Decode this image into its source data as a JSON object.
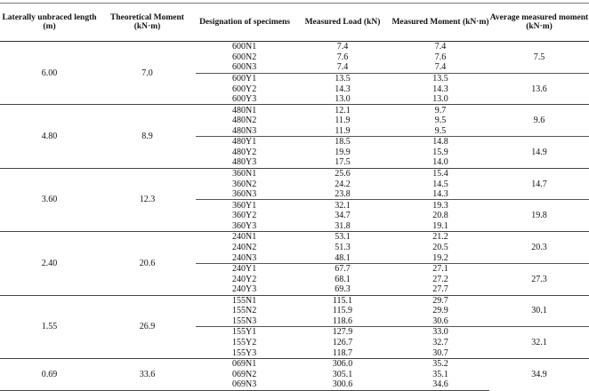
{
  "headers": [
    "Laterally unbraced length (m)",
    "Theoretical Moment (kN·m)",
    "Designation of specimens",
    "Measured Load (kN)",
    "Measured Moment (kN·m)",
    "Average measured moment (kN·m)"
  ],
  "groups": [
    {
      "length": "6.00",
      "theoretical": "7.0",
      "subgroups": [
        {
          "average": "7.5",
          "rows": [
            [
              "600N1",
              "7.4",
              "7.4"
            ],
            [
              "600N2",
              "7.6",
              "7.6"
            ],
            [
              "600N3",
              "7.4",
              "7.4"
            ]
          ]
        },
        {
          "average": "13.6",
          "rows": [
            [
              "600Y1",
              "13.5",
              "13.5"
            ],
            [
              "600Y2",
              "14.3",
              "14.3"
            ],
            [
              "600Y3",
              "13.0",
              "13.0"
            ]
          ]
        }
      ]
    },
    {
      "length": "4.80",
      "theoretical": "8.9",
      "subgroups": [
        {
          "average": "9.6",
          "rows": [
            [
              "480N1",
              "12.1",
              "9.7"
            ],
            [
              "480N2",
              "11.9",
              "9.5"
            ],
            [
              "480N3",
              "11.9",
              "9.5"
            ]
          ]
        },
        {
          "average": "14.9",
          "rows": [
            [
              "480Y1",
              "18.5",
              "14.8"
            ],
            [
              "480Y2",
              "19.9",
              "15.9"
            ],
            [
              "480Y3",
              "17.5",
              "14.0"
            ]
          ]
        }
      ]
    },
    {
      "length": "3.60",
      "theoretical": "12.3",
      "subgroups": [
        {
          "average": "14.7",
          "rows": [
            [
              "360N1",
              "25.6",
              "15.4"
            ],
            [
              "360N2",
              "24.2",
              "14.5"
            ],
            [
              "360N3",
              "23.8",
              "14.3"
            ]
          ]
        },
        {
          "average": "19.8",
          "rows": [
            [
              "360Y1",
              "32.1",
              "19.3"
            ],
            [
              "360Y2",
              "34.7",
              "20.8"
            ],
            [
              "360Y3",
              "31.8",
              "19.1"
            ]
          ]
        }
      ]
    },
    {
      "length": "2.40",
      "theoretical": "20.6",
      "subgroups": [
        {
          "average": "20.3",
          "rows": [
            [
              "240N1",
              "53.1",
              "21.2"
            ],
            [
              "240N2",
              "51.3",
              "20.5"
            ],
            [
              "240N3",
              "48.1",
              "19.2"
            ]
          ]
        },
        {
          "average": "27.3",
          "rows": [
            [
              "240Y1",
              "67.7",
              "27.1"
            ],
            [
              "240Y2",
              "68.1",
              "27.2"
            ],
            [
              "240Y3",
              "69.3",
              "27.7"
            ]
          ]
        }
      ]
    },
    {
      "length": "1.55",
      "theoretical": "26.9",
      "subgroups": [
        {
          "average": "30.1",
          "rows": [
            [
              "155N1",
              "115.1",
              "29.7"
            ],
            [
              "155N2",
              "115.9",
              "29.9"
            ],
            [
              "155N3",
              "118.6",
              "30.6"
            ]
          ]
        },
        {
          "average": "32.1",
          "rows": [
            [
              "155Y1",
              "127.9",
              "33.0"
            ],
            [
              "155Y2",
              "126.7",
              "32.7"
            ],
            [
              "155Y3",
              "118.7",
              "30.7"
            ]
          ]
        }
      ]
    },
    {
      "length": "0.69",
      "theoretical": "33.6",
      "subgroups": [
        {
          "average": "34.9",
          "rows": [
            [
              "069N1",
              "306.0",
              "35.2"
            ],
            [
              "069N2",
              "305.1",
              "35.1"
            ],
            [
              "069N3",
              "300.6",
              "34.6"
            ]
          ]
        }
      ]
    }
  ]
}
